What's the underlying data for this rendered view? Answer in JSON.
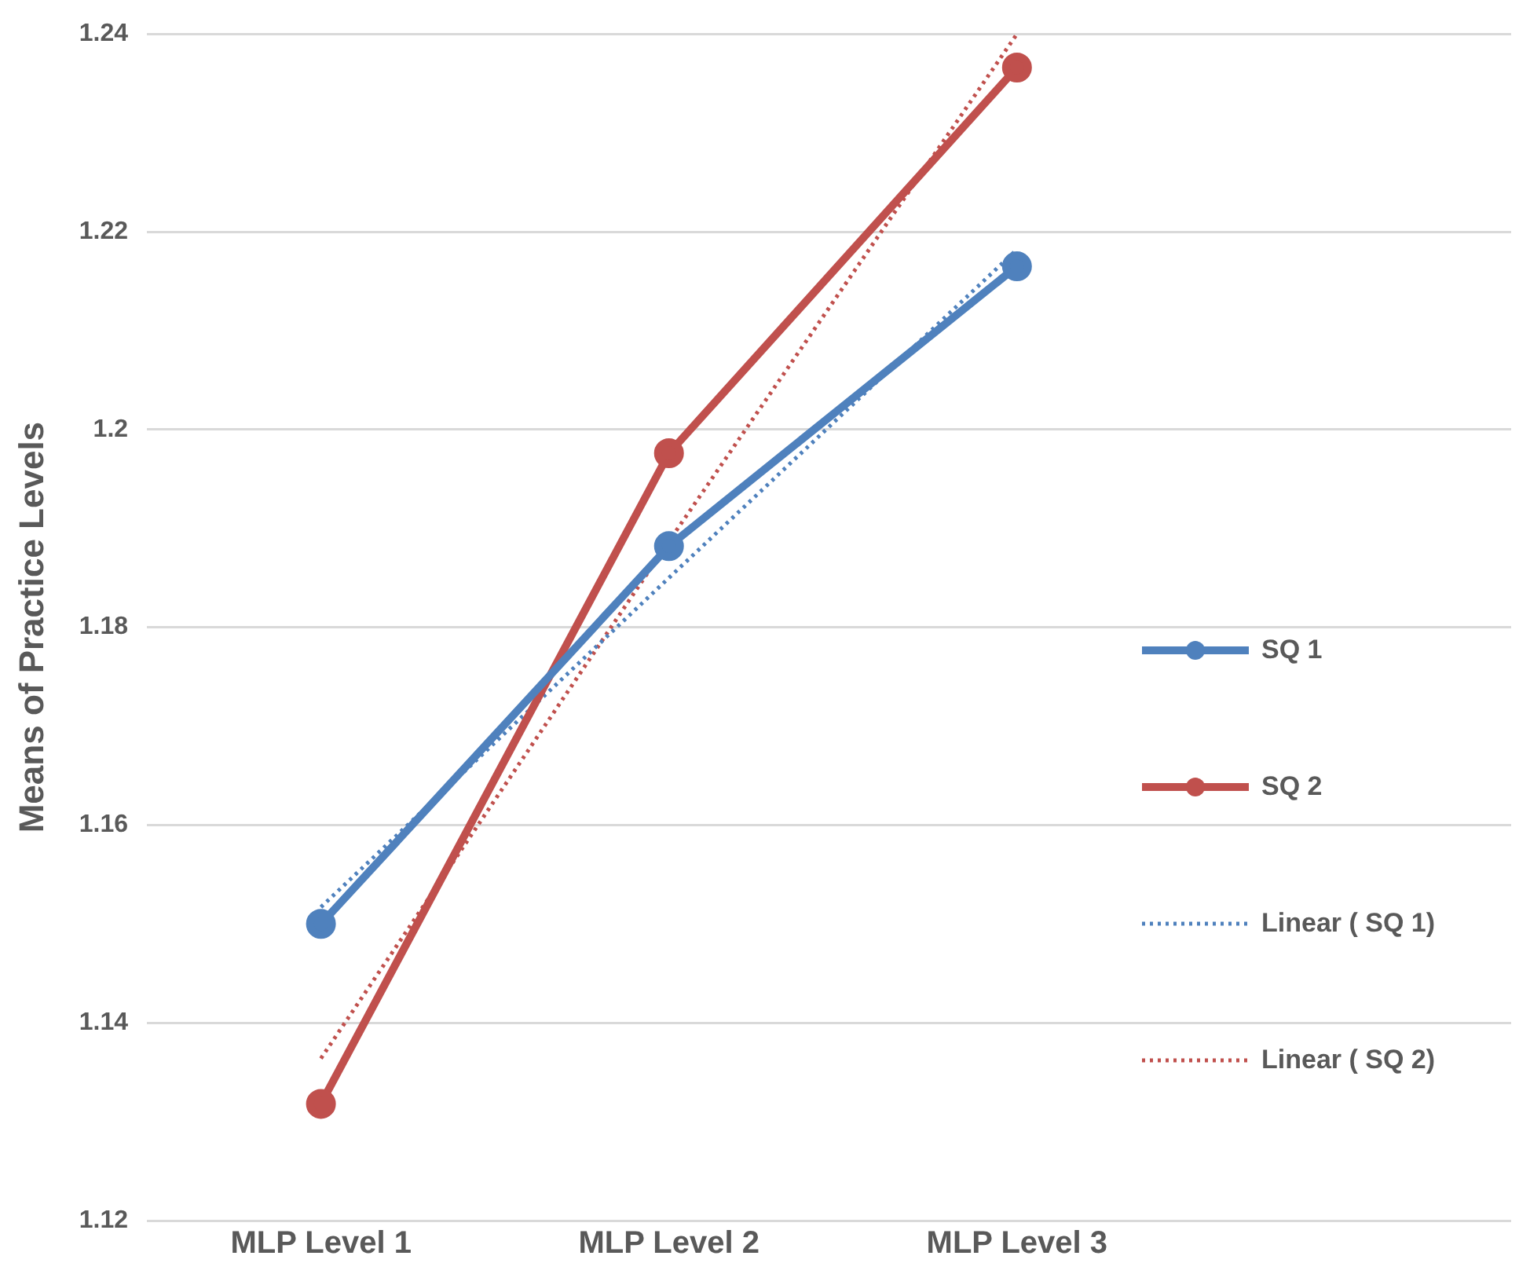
{
  "chart_data": {
    "type": "line",
    "ylabel": "Means of Practice Levels",
    "categories": [
      "MLP Level 1",
      "MLP Level 2",
      "MLP Level 3"
    ],
    "ylim": [
      1.12,
      1.24
    ],
    "yticks": [
      1.12,
      1.14,
      1.16,
      1.18,
      1.2,
      1.22,
      1.24
    ],
    "grid": "y",
    "legend": "right",
    "marker": "circle",
    "series": [
      {
        "name": "SQ 1",
        "color": "#4f81bd",
        "values": [
          1.15,
          1.1882,
          1.2165
        ]
      },
      {
        "name": "SQ 2",
        "color": "#c0504d",
        "values": [
          1.1318,
          1.1976,
          1.2366
        ]
      },
      {
        "name": "Linear ( SQ 1)",
        "color": "#4f81bd",
        "type": "line",
        "line_style": "dotted",
        "marker": "none",
        "values": [
          1.1517,
          1.185,
          1.2182
        ]
      },
      {
        "name": "Linear ( SQ 2)",
        "color": "#c0504d",
        "type": "line",
        "line_style": "dotted",
        "marker": "none",
        "values": [
          1.1364,
          1.1887,
          1.24
        ]
      }
    ]
  }
}
